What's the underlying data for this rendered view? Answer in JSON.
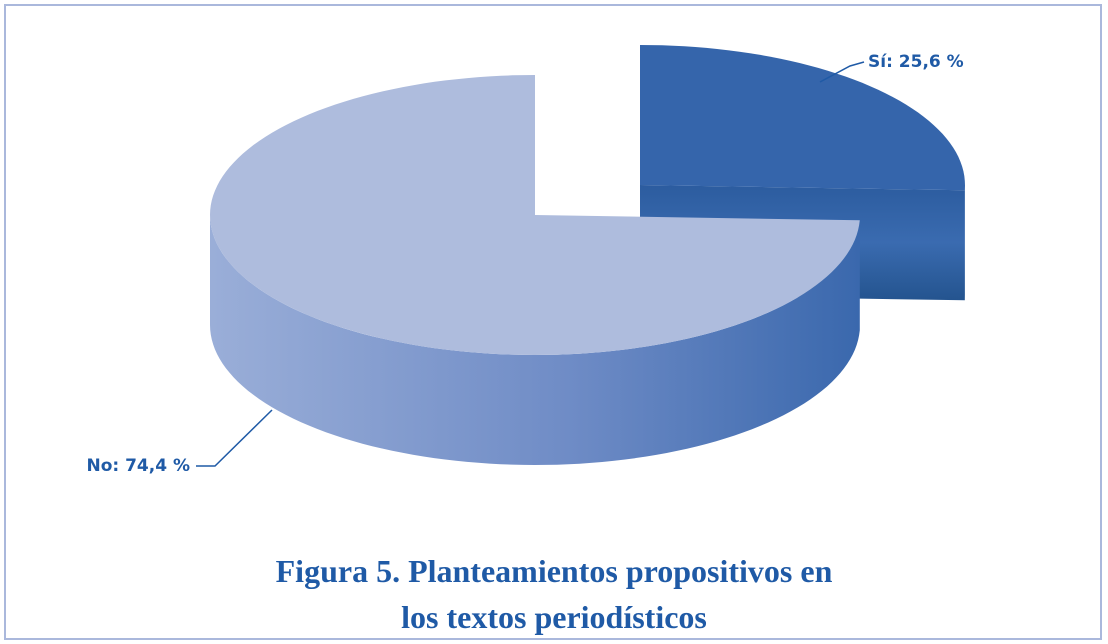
{
  "chart_data": {
    "type": "pie",
    "title": "Figura 5. Planteamientos propositivos en los textos periodísticos",
    "values": [
      25.6,
      74.4
    ],
    "value_labels": [
      "Sí: 25,6 %",
      "No: 74,4 %"
    ],
    "colors": [
      "#3565ab",
      "#aebcdd"
    ]
  }
}
